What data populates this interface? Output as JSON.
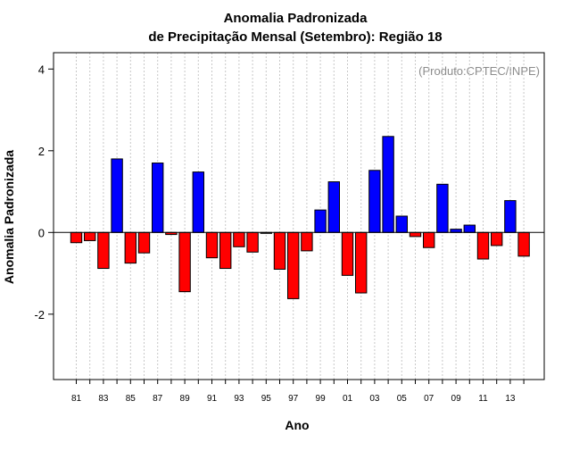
{
  "chart_data": {
    "type": "bar",
    "title": "Anomalia Padronizada",
    "subtitle": "de Precipitação Mensal (Setembro): Região 18",
    "xlabel": "Ano",
    "ylabel": "Anomalia Padronizada",
    "credit": "(Produto:CPTEC/INPE)",
    "ylim": [
      -3.6,
      4.4
    ],
    "yticks": [
      -2,
      0,
      2,
      4
    ],
    "grid": true,
    "categories": [
      "81",
      "82",
      "83",
      "84",
      "85",
      "86",
      "87",
      "88",
      "89",
      "90",
      "91",
      "92",
      "93",
      "94",
      "95",
      "96",
      "97",
      "98",
      "99",
      "00",
      "01",
      "02",
      "03",
      "04",
      "05",
      "06",
      "07",
      "08",
      "09",
      "10",
      "11",
      "12",
      "13",
      "14"
    ],
    "tick_labels": [
      "81",
      "83",
      "85",
      "87",
      "89",
      "91",
      "93",
      "95",
      "97",
      "99",
      "01",
      "03",
      "05",
      "07",
      "09",
      "11",
      "13"
    ],
    "values": [
      -0.25,
      -0.2,
      -0.88,
      1.8,
      -0.75,
      -0.5,
      1.7,
      -0.05,
      -1.45,
      1.48,
      -0.62,
      -0.88,
      -0.35,
      -0.48,
      -0.02,
      -0.9,
      -1.62,
      -0.45,
      0.55,
      1.24,
      -1.05,
      -1.48,
      1.52,
      2.35,
      0.4,
      -0.1,
      -0.37,
      1.18,
      0.08,
      0.18,
      -0.65,
      -0.32,
      0.78,
      -0.58
    ],
    "colors": {
      "positive": "#0000ff",
      "negative": "#ff0000"
    }
  }
}
